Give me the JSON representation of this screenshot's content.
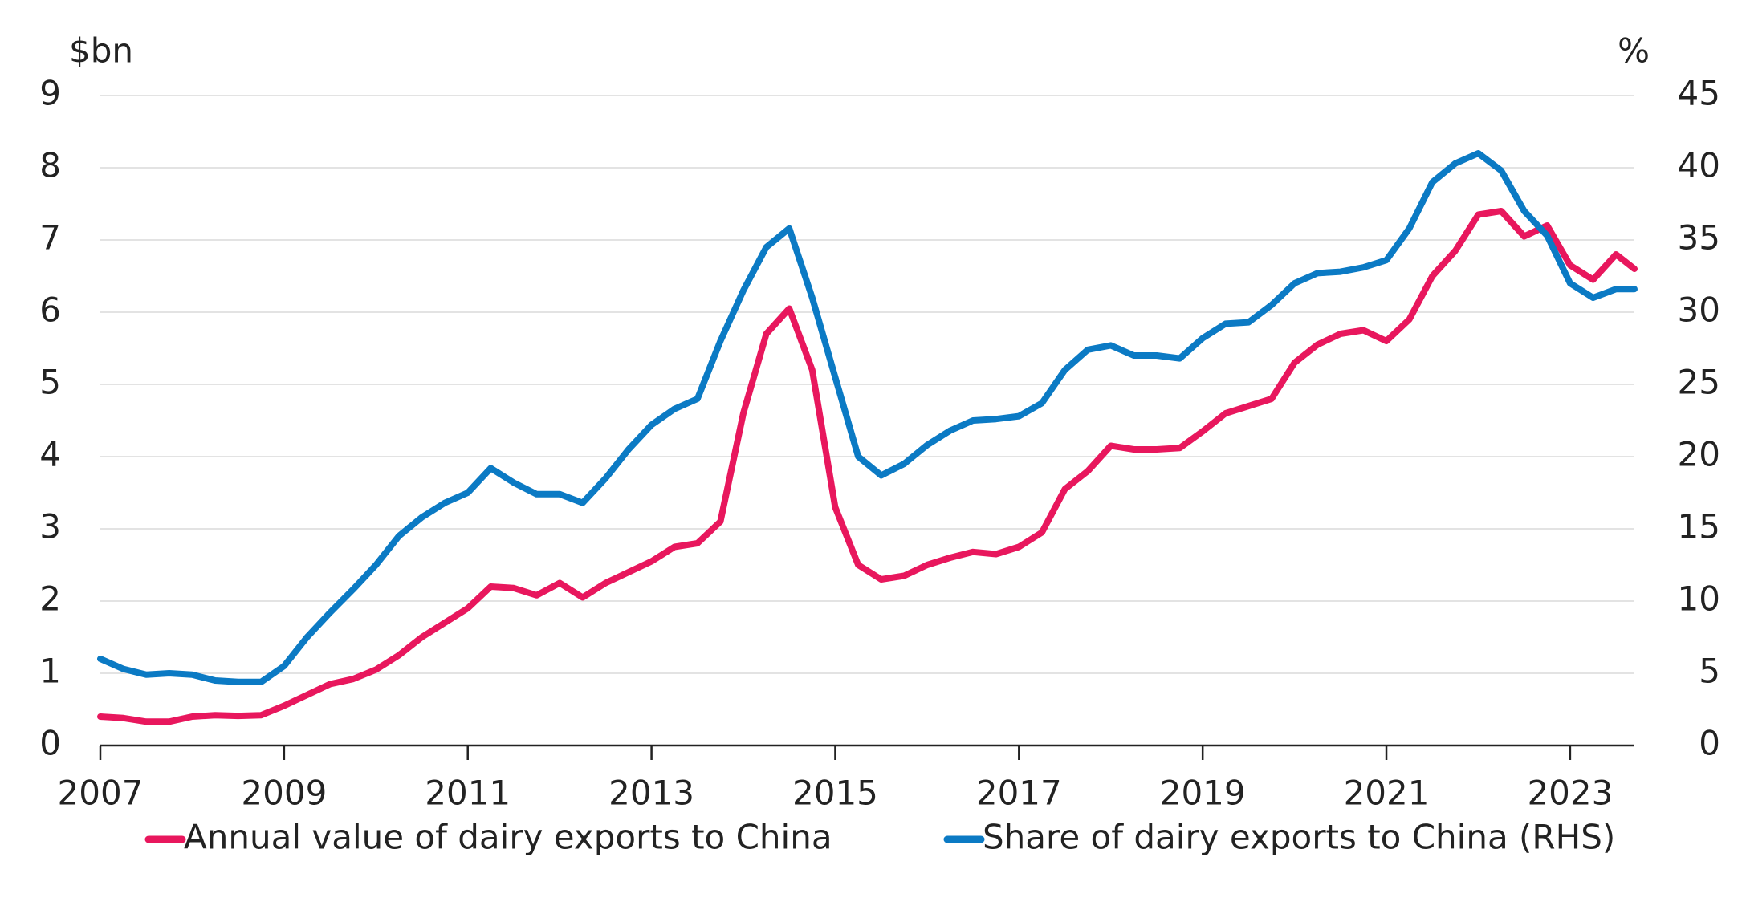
{
  "chart_data": {
    "type": "line",
    "y_unit_label": "$bn",
    "y2_unit_label": "%",
    "x": [
      2007,
      2007.25,
      2007.5,
      2007.75,
      2008,
      2008.25,
      2008.5,
      2008.75,
      2009,
      2009.25,
      2009.5,
      2009.75,
      2010,
      2010.25,
      2010.5,
      2010.75,
      2011,
      2011.25,
      2011.5,
      2011.75,
      2012,
      2012.25,
      2012.5,
      2012.75,
      2013,
      2013.25,
      2013.5,
      2013.75,
      2014,
      2014.25,
      2014.5,
      2014.75,
      2015,
      2015.25,
      2015.5,
      2015.75,
      2016,
      2016.25,
      2016.5,
      2016.75,
      2017,
      2017.25,
      2017.5,
      2017.75,
      2018,
      2018.25,
      2018.5,
      2018.75,
      2019,
      2019.25,
      2019.5,
      2019.75,
      2020,
      2020.25,
      2020.5,
      2020.75,
      2021,
      2021.25,
      2021.5,
      2021.75,
      2022,
      2022.25,
      2022.5,
      2022.75,
      2023,
      2023.25,
      2023.5,
      2023.7
    ],
    "series": [
      {
        "name": "Annual value of dairy exports to China",
        "color": "#e8175d",
        "values": [
          0.4,
          0.38,
          0.33,
          0.33,
          0.4,
          0.42,
          0.41,
          0.42,
          0.55,
          0.7,
          0.85,
          0.92,
          1.05,
          1.25,
          1.5,
          1.7,
          1.9,
          2.2,
          2.18,
          2.08,
          2.25,
          2.05,
          2.25,
          2.4,
          2.55,
          2.75,
          2.8,
          3.1,
          4.6,
          5.7,
          6.05,
          5.2,
          3.3,
          2.5,
          2.3,
          2.35,
          2.5,
          2.6,
          2.68,
          2.65,
          2.75,
          2.95,
          3.55,
          3.8,
          4.15,
          4.1,
          4.1,
          4.12,
          4.35,
          4.6,
          4.7,
          4.8,
          5.3,
          5.55,
          5.7,
          5.75,
          5.6,
          5.9,
          6.5,
          6.85,
          7.35,
          7.4,
          7.05,
          7.2,
          6.65,
          6.45,
          6.8,
          6.6
        ]
      },
      {
        "name": "Share of dairy exports to China (RHS)",
        "color": "#0b7ac4",
        "axis": "y2",
        "values": [
          6,
          5.3,
          4.9,
          5,
          4.9,
          4.5,
          4.4,
          4.4,
          5.5,
          7.5,
          9.2,
          10.8,
          12.5,
          14.5,
          15.8,
          16.8,
          17.5,
          19.2,
          18.2,
          17.4,
          17.4,
          16.8,
          18.5,
          20.5,
          22.2,
          23.3,
          24,
          28,
          31.5,
          34.5,
          35.8,
          31,
          25.5,
          20,
          18.7,
          19.5,
          20.8,
          21.8,
          22.5,
          22.6,
          22.8,
          23.7,
          26,
          27.4,
          27.7,
          27,
          27,
          26.8,
          28.2,
          29.2,
          29.3,
          30.5,
          32,
          32.7,
          32.8,
          33.1,
          33.6,
          35.8,
          39,
          40.3,
          41,
          39.8,
          37,
          35.3,
          32,
          31,
          31.6,
          31.6
        ]
      }
    ],
    "xlim": [
      2007,
      2023.7
    ],
    "xticks": [
      2007,
      2009,
      2011,
      2013,
      2015,
      2017,
      2019,
      2021,
      2023
    ],
    "ylim": [
      0,
      9
    ],
    "yticks": [
      0,
      1,
      2,
      3,
      4,
      5,
      6,
      7,
      8,
      9
    ],
    "y2lim": [
      0,
      45
    ],
    "y2ticks": [
      0,
      5,
      10,
      15,
      20,
      25,
      30,
      35,
      40,
      45
    ],
    "grid": true,
    "legend": "bottom"
  }
}
